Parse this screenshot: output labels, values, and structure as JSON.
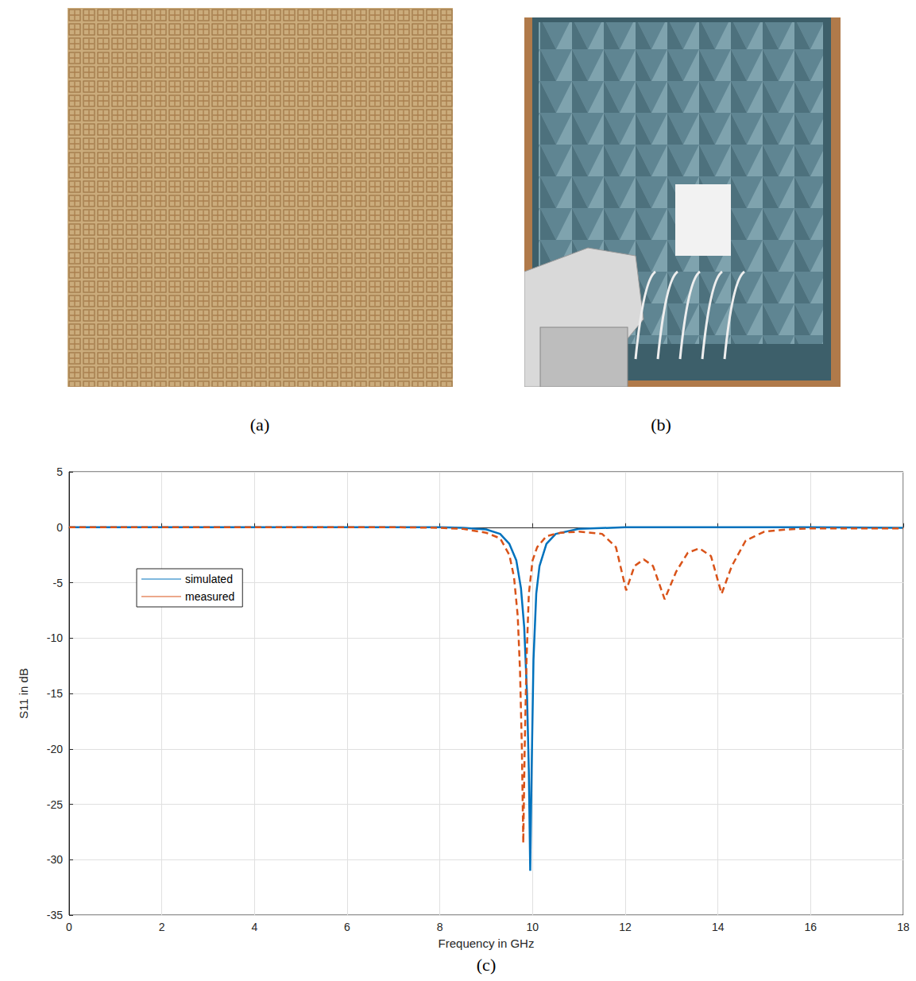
{
  "panel_labels": [
    "(a)",
    "(b)",
    "(c)"
  ],
  "chart_data": {
    "type": "line",
    "x_label": "Frequency in GHz",
    "y_label": "S11 in dB",
    "xlim": [
      0,
      18
    ],
    "xticks": [
      0,
      2,
      4,
      6,
      8,
      10,
      12,
      14,
      16,
      18
    ],
    "ylim": [
      -35,
      5
    ],
    "yticks": [
      -35,
      -30,
      -25,
      -20,
      -15,
      -10,
      -5,
      0,
      5
    ],
    "grid": true,
    "legend": "upper left",
    "series": [
      {
        "name": "simulated",
        "color": "#0072bd",
        "line_style": "solid",
        "x": [
          0,
          2,
          4,
          6,
          8,
          8.5,
          9,
          9.3,
          9.5,
          9.65,
          9.75,
          9.82,
          9.88,
          9.92,
          9.95,
          9.98,
          10.02,
          10.08,
          10.15,
          10.3,
          10.5,
          11,
          12,
          14,
          16,
          18
        ],
        "values": [
          0,
          0,
          0,
          0,
          0,
          -0.05,
          -0.2,
          -0.6,
          -1.5,
          -3,
          -5.5,
          -9,
          -15,
          -22,
          -31,
          -22,
          -12,
          -6,
          -3.5,
          -1.5,
          -0.6,
          -0.15,
          0,
          0,
          0,
          -0.05
        ]
      },
      {
        "name": "measured",
        "color": "#d95319",
        "line_style": "dashed",
        "x": [
          0,
          2,
          4,
          6,
          7,
          8,
          8.5,
          9,
          9.3,
          9.5,
          9.6,
          9.68,
          9.73,
          9.77,
          9.8,
          9.83,
          9.87,
          9.92,
          10,
          10.1,
          10.3,
          10.6,
          11,
          11.5,
          11.8,
          12.02,
          12.2,
          12.4,
          12.6,
          12.85,
          13.1,
          13.35,
          13.6,
          13.85,
          14.08,
          14.3,
          14.6,
          15,
          15.5,
          16,
          18
        ],
        "values": [
          0,
          0,
          0,
          0,
          0,
          -0.05,
          -0.15,
          -0.5,
          -1,
          -2.5,
          -4.5,
          -8,
          -13,
          -20,
          -28.5,
          -20,
          -12,
          -6,
          -3,
          -1.8,
          -0.8,
          -0.5,
          -0.4,
          -0.6,
          -1.8,
          -5.7,
          -3.5,
          -2.9,
          -3.5,
          -6.5,
          -4,
          -2.3,
          -1.9,
          -2.6,
          -6,
          -3.5,
          -1.2,
          -0.4,
          -0.2,
          -0.1,
          -0.1
        ]
      }
    ]
  }
}
